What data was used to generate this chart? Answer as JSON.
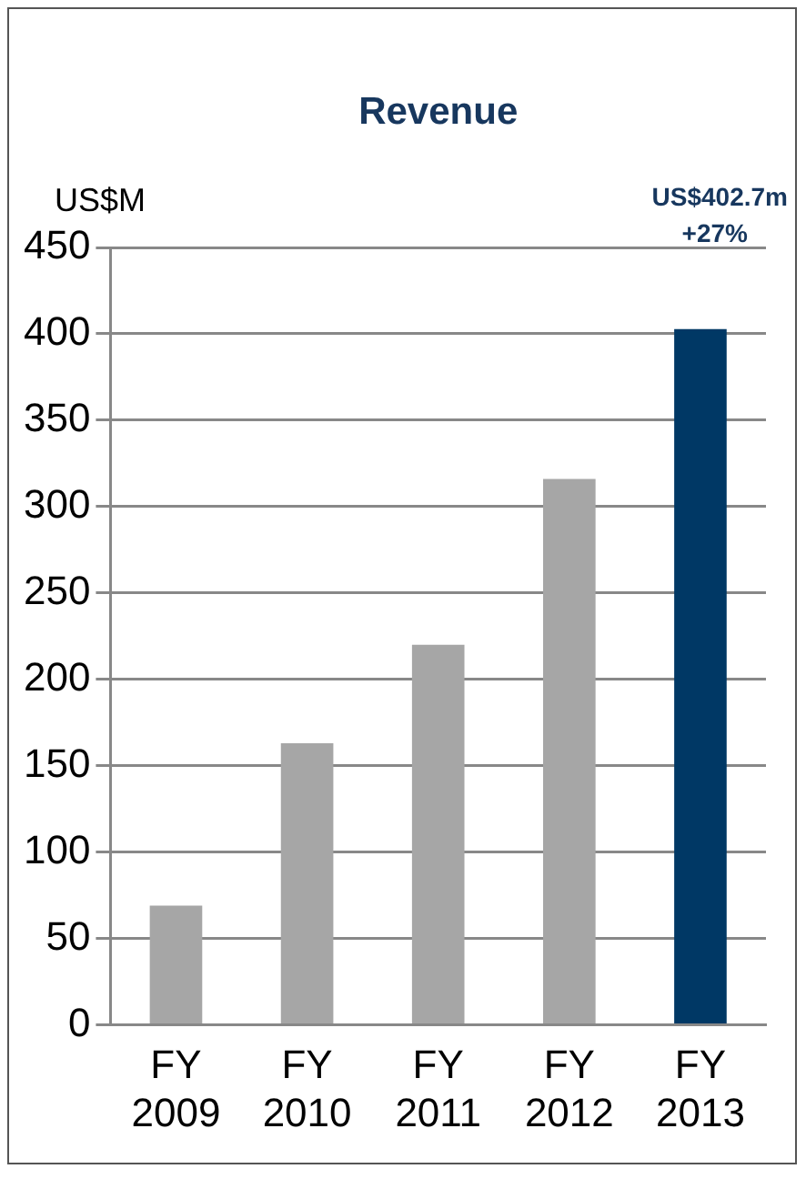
{
  "chart_data": {
    "type": "bar",
    "title": "Revenue",
    "ylabel": "US$M",
    "categories": [
      "FY 2009",
      "FY 2010",
      "FY 2011",
      "FY 2012",
      "FY 2013"
    ],
    "values": [
      69,
      163,
      220,
      316,
      402.7
    ],
    "colors": [
      "#a6a6a6",
      "#a6a6a6",
      "#a6a6a6",
      "#a6a6a6",
      "#003865"
    ],
    "annotations": [
      "US$402.7m\n+27%"
    ],
    "ylim": [
      0,
      450
    ],
    "yticks": [
      0,
      50,
      100,
      150,
      200,
      250,
      300,
      350,
      400,
      450
    ],
    "grid": "y"
  }
}
